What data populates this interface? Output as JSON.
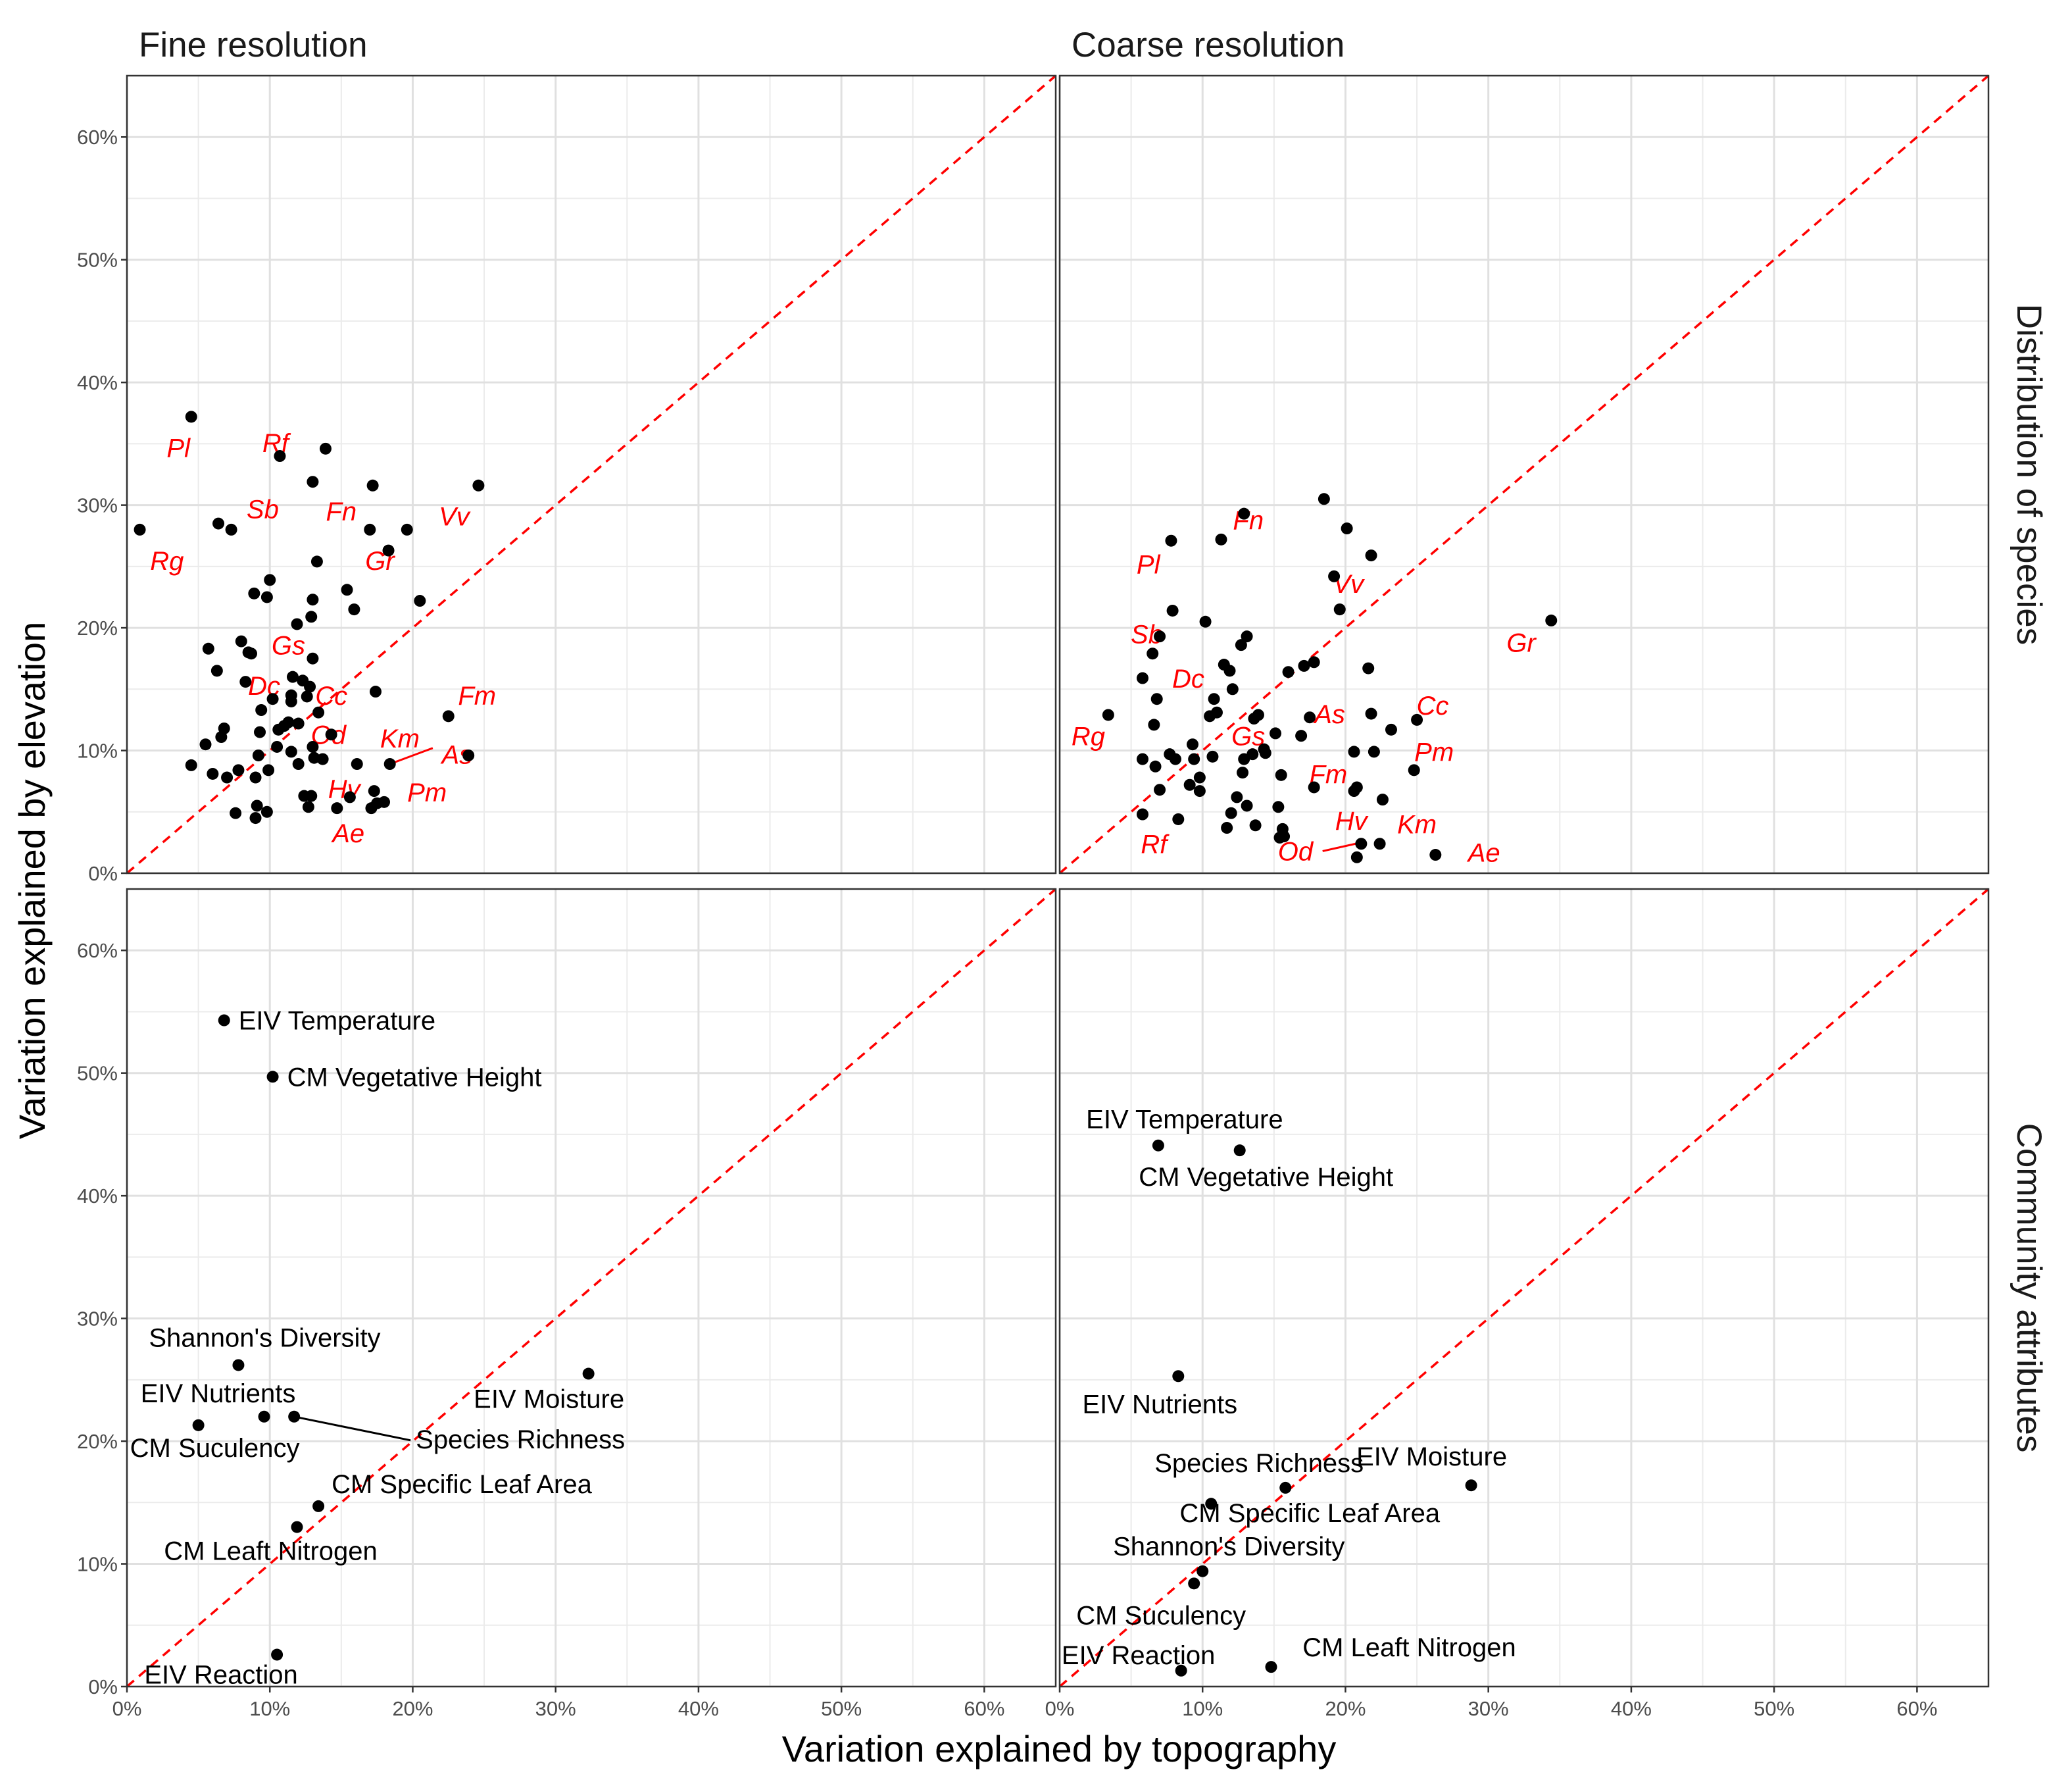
{
  "axes": {
    "x_title": "Variation explained by topography",
    "y_title": "Variation explained by elevation",
    "tick_labels": [
      "0%",
      "10%",
      "20%",
      "30%",
      "40%",
      "50%",
      "60%"
    ]
  },
  "chart_data": {
    "type": "scatter",
    "xlabel": "Variation explained by topography",
    "ylabel": "Variation explained by elevation",
    "xlim": [
      0,
      65
    ],
    "ylim": [
      0,
      65
    ],
    "grid": true,
    "reference_line": {
      "type": "1:1",
      "style": "dashed",
      "color": "#ff0000"
    },
    "columns": [
      "Fine resolution",
      "Coarse resolution"
    ],
    "rows": [
      "Distribution of species",
      "Community attributes"
    ],
    "panels": [
      {
        "column": "Fine resolution",
        "row": "Distribution of species",
        "points": [
          [
            0.9,
            28
          ],
          [
            4.5,
            37.2
          ],
          [
            4.5,
            8.8
          ],
          [
            5.5,
            10.5
          ],
          [
            5.7,
            18.3
          ],
          [
            6,
            8.1
          ],
          [
            6.3,
            16.5
          ],
          [
            6.4,
            28.5
          ],
          [
            6.6,
            11.1
          ],
          [
            6.8,
            11.8
          ],
          [
            7,
            7.8
          ],
          [
            7.3,
            28
          ],
          [
            7.6,
            4.9
          ],
          [
            7.8,
            8.4
          ],
          [
            8,
            18.9
          ],
          [
            8.3,
            15.6
          ],
          [
            8.5,
            18
          ],
          [
            8.7,
            17.9
          ],
          [
            8.9,
            22.8
          ],
          [
            9,
            4.5
          ],
          [
            9,
            7.8
          ],
          [
            9.1,
            5.5
          ],
          [
            9.2,
            9.6
          ],
          [
            9.3,
            11.5
          ],
          [
            9.4,
            13.3
          ],
          [
            9.8,
            22.5
          ],
          [
            9.8,
            5
          ],
          [
            9.9,
            8.4
          ],
          [
            10,
            23.9
          ],
          [
            10.2,
            14.2
          ],
          [
            10.5,
            10.3
          ],
          [
            10.6,
            11.7
          ],
          [
            10.7,
            34
          ],
          [
            11,
            12
          ],
          [
            11.3,
            12.3
          ],
          [
            11.5,
            9.9
          ],
          [
            11.5,
            14
          ],
          [
            11.5,
            14.5
          ],
          [
            11.6,
            16
          ],
          [
            11.9,
            20.3
          ],
          [
            12,
            12.2
          ],
          [
            12,
            8.9
          ],
          [
            12.3,
            15.7
          ],
          [
            12.4,
            6.3
          ],
          [
            12.6,
            14.4
          ],
          [
            12.7,
            5.4
          ],
          [
            12.8,
            15.2
          ],
          [
            12.9,
            6.3
          ],
          [
            12.9,
            20.9
          ],
          [
            13,
            22.3
          ],
          [
            13,
            17.5
          ],
          [
            13,
            31.9
          ],
          [
            13,
            10.3
          ],
          [
            13.1,
            9.4
          ],
          [
            13.3,
            25.4
          ],
          [
            13.4,
            13.1
          ],
          [
            13.7,
            9.3
          ],
          [
            13.9,
            34.6
          ],
          [
            14.3,
            11.3
          ],
          [
            14.7,
            5.3
          ],
          [
            15.4,
            23.1
          ],
          [
            15.6,
            6.2
          ],
          [
            15.9,
            21.5
          ],
          [
            16.1,
            8.9
          ],
          [
            17,
            28
          ],
          [
            17.1,
            5.3
          ],
          [
            17.2,
            31.6
          ],
          [
            17.3,
            6.7
          ],
          [
            17.4,
            14.8
          ],
          [
            17.5,
            5.7
          ],
          [
            18,
            5.8
          ],
          [
            18.3,
            26.3
          ],
          [
            18.4,
            8.9
          ],
          [
            19.6,
            28
          ],
          [
            20.5,
            22.2
          ],
          [
            22.5,
            12.8
          ],
          [
            23.9,
            9.6
          ],
          [
            24.6,
            31.6
          ]
        ],
        "labels": [
          {
            "text": "Pl",
            "x": 3.6,
            "y": 34.5
          },
          {
            "text": "Rf",
            "x": 10.4,
            "y": 34.9
          },
          {
            "text": "Sb",
            "x": 9.5,
            "y": 29.5
          },
          {
            "text": "Fn",
            "x": 15,
            "y": 29.3
          },
          {
            "text": "Vv",
            "x": 22.9,
            "y": 28.9
          },
          {
            "text": "Rg",
            "x": 2.8,
            "y": 25.3
          },
          {
            "text": "Gr",
            "x": 17.7,
            "y": 25.3
          },
          {
            "text": "Gs",
            "x": 11.3,
            "y": 18.4
          },
          {
            "text": "Dc",
            "x": 9.6,
            "y": 15.1
          },
          {
            "text": "Cc",
            "x": 14.3,
            "y": 14.3
          },
          {
            "text": "Fm",
            "x": 24.5,
            "y": 14.3
          },
          {
            "text": "Od",
            "x": 14.1,
            "y": 11.1
          },
          {
            "text": "Km",
            "x": 19.1,
            "y": 10.8
          },
          {
            "text": "As",
            "x": 23.1,
            "y": 9.5
          },
          {
            "text": "Hv",
            "x": 15.2,
            "y": 6.7
          },
          {
            "text": "Pm",
            "x": 21,
            "y": 6.4
          },
          {
            "text": "Ae",
            "x": 15.5,
            "y": 3.1
          }
        ]
      },
      {
        "column": "Coarse resolution",
        "row": "Distribution of species",
        "points": [
          [
            3.4,
            12.9
          ],
          [
            5.8,
            15.9
          ],
          [
            5.8,
            4.8
          ],
          [
            5.8,
            9.3
          ],
          [
            6.5,
            17.9
          ],
          [
            6.6,
            12.1
          ],
          [
            6.7,
            8.7
          ],
          [
            6.8,
            14.2
          ],
          [
            7,
            19.3
          ],
          [
            7,
            6.8
          ],
          [
            7.7,
            9.7
          ],
          [
            7.8,
            27.1
          ],
          [
            7.9,
            21.4
          ],
          [
            8.1,
            9.3
          ],
          [
            8.3,
            4.4
          ],
          [
            9.1,
            7.2
          ],
          [
            9.3,
            10.5
          ],
          [
            9.4,
            9.3
          ],
          [
            9.8,
            7.8
          ],
          [
            9.8,
            6.7
          ],
          [
            10.2,
            20.5
          ],
          [
            10.5,
            12.8
          ],
          [
            10.7,
            9.5
          ],
          [
            10.8,
            14.2
          ],
          [
            11,
            13.1
          ],
          [
            11.3,
            27.2
          ],
          [
            11.5,
            17
          ],
          [
            11.7,
            3.7
          ],
          [
            11.9,
            16.5
          ],
          [
            12,
            4.9
          ],
          [
            12.1,
            15
          ],
          [
            12.4,
            6.2
          ],
          [
            12.7,
            18.6
          ],
          [
            12.8,
            8.2
          ],
          [
            12.9,
            9.3
          ],
          [
            12.9,
            29.3
          ],
          [
            13.1,
            19.3
          ],
          [
            13.1,
            5.5
          ],
          [
            13.5,
            9.7
          ],
          [
            13.6,
            12.6
          ],
          [
            13.7,
            3.9
          ],
          [
            13.9,
            12.9
          ],
          [
            14.3,
            10.1
          ],
          [
            14.4,
            9.8
          ],
          [
            15.1,
            11.4
          ],
          [
            15.3,
            5.4
          ],
          [
            15.4,
            2.9
          ],
          [
            15.5,
            8
          ],
          [
            15.6,
            3.6
          ],
          [
            15.7,
            3
          ],
          [
            16,
            16.4
          ],
          [
            16.9,
            11.2
          ],
          [
            17.1,
            16.9
          ],
          [
            17.5,
            12.7
          ],
          [
            17.8,
            7
          ],
          [
            17.8,
            17.2
          ],
          [
            18.5,
            30.5
          ],
          [
            19.2,
            24.2
          ],
          [
            19.6,
            21.5
          ],
          [
            20.1,
            28.1
          ],
          [
            20.6,
            6.7
          ],
          [
            20.6,
            9.9
          ],
          [
            20.8,
            7
          ],
          [
            20.8,
            1.3
          ],
          [
            21.1,
            2.4
          ],
          [
            21.6,
            16.7
          ],
          [
            21.8,
            25.9
          ],
          [
            21.8,
            13
          ],
          [
            22,
            9.9
          ],
          [
            22.4,
            2.4
          ],
          [
            22.6,
            6
          ],
          [
            23.2,
            11.7
          ],
          [
            24.8,
            8.4
          ],
          [
            25,
            12.5
          ],
          [
            26.3,
            1.5
          ],
          [
            34.4,
            20.6
          ]
        ],
        "labels": [
          {
            "text": "Fn",
            "x": 13.2,
            "y": 28.6
          },
          {
            "text": "Pl",
            "x": 6.2,
            "y": 25
          },
          {
            "text": "Vv",
            "x": 20.2,
            "y": 23.4
          },
          {
            "text": "Gr",
            "x": 32.3,
            "y": 18.6
          },
          {
            "text": "Sb",
            "x": 6.1,
            "y": 19.3
          },
          {
            "text": "Dc",
            "x": 9,
            "y": 15.7
          },
          {
            "text": "Cc",
            "x": 26.1,
            "y": 13.5
          },
          {
            "text": "As",
            "x": 18.9,
            "y": 12.8
          },
          {
            "text": "Gs",
            "x": 13.2,
            "y": 11
          },
          {
            "text": "Rg",
            "x": 2,
            "y": 11
          },
          {
            "text": "Pm",
            "x": 26.2,
            "y": 9.7
          },
          {
            "text": "Fm",
            "x": 18.8,
            "y": 7.9
          },
          {
            "text": "Hv",
            "x": 20.4,
            "y": 4.1
          },
          {
            "text": "Km",
            "x": 25,
            "y": 3.8
          },
          {
            "text": "Rf",
            "x": 6.6,
            "y": 2.2
          },
          {
            "text": "Od",
            "x": 16.5,
            "y": 1.6
          },
          {
            "text": "Ae",
            "x": 29.7,
            "y": 1.5
          }
        ]
      },
      {
        "column": "Fine resolution",
        "row": "Community attributes",
        "points": [
          {
            "name": "EIV Temperature",
            "x": 6.8,
            "y": 54.3
          },
          {
            "name": "CM Vegetative Height",
            "x": 10.2,
            "y": 49.7
          },
          {
            "name": "Shannon's Diversity",
            "x": 7.8,
            "y": 26.2
          },
          {
            "name": "EIV Moisture",
            "x": 32.3,
            "y": 25.5
          },
          {
            "name": "EIV Nutrients",
            "x": 9.6,
            "y": 22
          },
          {
            "name": "Species Richness",
            "x": 11.7,
            "y": 22
          },
          {
            "name": "CM Suculency",
            "x": 5,
            "y": 21.3
          },
          {
            "name": "CM Specific Leaf Area",
            "x": 13.4,
            "y": 14.7
          },
          {
            "name": "CM Leaft Nitrogen",
            "x": 11.9,
            "y": 13
          },
          {
            "name": "EIV Reaction",
            "x": 10.5,
            "y": 2.6
          }
        ]
      },
      {
        "column": "Coarse resolution",
        "row": "Community attributes",
        "points": [
          {
            "name": "EIV Temperature",
            "x": 6.9,
            "y": 44.1
          },
          {
            "name": "CM Vegetative Height",
            "x": 12.6,
            "y": 43.7
          },
          {
            "name": "EIV Nutrients",
            "x": 8.3,
            "y": 25.3
          },
          {
            "name": "EIV Moisture",
            "x": 28.8,
            "y": 16.4
          },
          {
            "name": "Species Richness",
            "x": 15.8,
            "y": 16.2
          },
          {
            "name": "CM Specific Leaf Area",
            "x": 10.6,
            "y": 14.9
          },
          {
            "name": "Shannon's Diversity",
            "x": 10,
            "y": 9.4
          },
          {
            "name": "CM Suculency",
            "x": 9.4,
            "y": 8.4
          },
          {
            "name": "CM Leaft Nitrogen",
            "x": 14.8,
            "y": 1.6
          },
          {
            "name": "EIV Reaction",
            "x": 8.5,
            "y": 1.3
          }
        ]
      }
    ]
  }
}
